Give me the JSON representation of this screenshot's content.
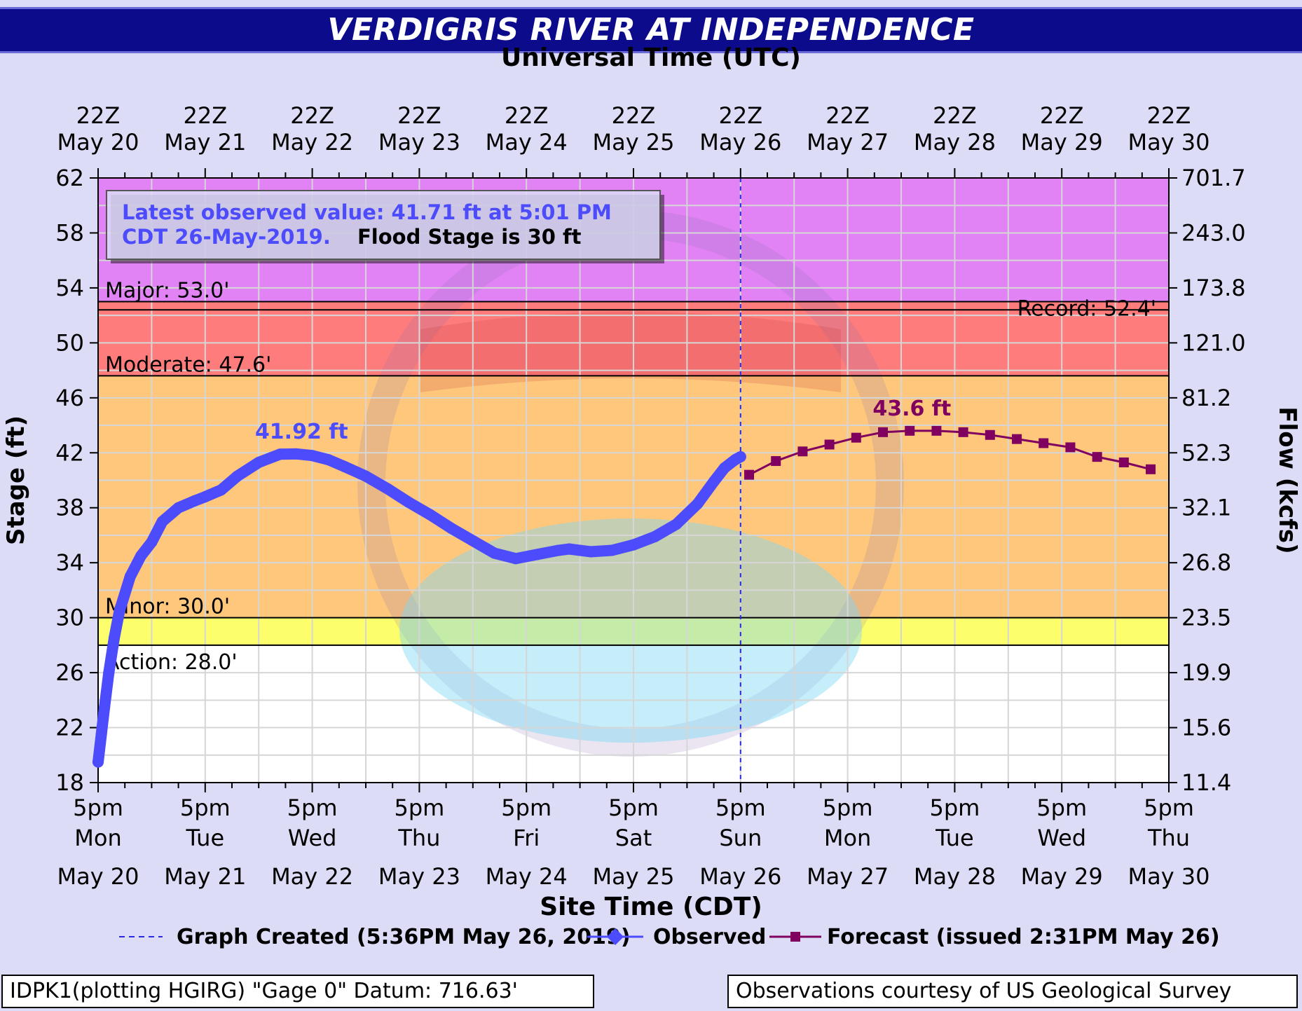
{
  "chart_data": {
    "type": "line",
    "title": "VERDIGRIS RIVER AT INDEPENDENCE",
    "top_axis_label": "Universal Time (UTC)",
    "bottom_axis_label": "Site Time (CDT)",
    "ylabel_left": "Stage (ft)",
    "ylabel_right": "Flow (kcfs)",
    "ylim": [
      18,
      62
    ],
    "xlim_days": [
      0,
      10
    ],
    "y_ticks": [
      18,
      22,
      26,
      30,
      34,
      38,
      42,
      46,
      50,
      54,
      58,
      62
    ],
    "flow_ticks": [
      "11.4",
      "15.6",
      "19.9",
      "23.5",
      "26.8",
      "32.1",
      "52.3",
      "81.2",
      "121.0",
      "173.8",
      "243.0",
      "701.7"
    ],
    "top_ticks": [
      {
        "line1": "22Z",
        "line2": "May 20"
      },
      {
        "line1": "22Z",
        "line2": "May 21"
      },
      {
        "line1": "22Z",
        "line2": "May 22"
      },
      {
        "line1": "22Z",
        "line2": "May 23"
      },
      {
        "line1": "22Z",
        "line2": "May 24"
      },
      {
        "line1": "22Z",
        "line2": "May 25"
      },
      {
        "line1": "22Z",
        "line2": "May 26"
      },
      {
        "line1": "22Z",
        "line2": "May 27"
      },
      {
        "line1": "22Z",
        "line2": "May 28"
      },
      {
        "line1": "22Z",
        "line2": "May 29"
      },
      {
        "line1": "22Z",
        "line2": "May 30"
      }
    ],
    "bottom_ticks": [
      {
        "time": "5pm",
        "day": "Mon",
        "date": "May 20"
      },
      {
        "time": "5pm",
        "day": "Tue",
        "date": "May 21"
      },
      {
        "time": "5pm",
        "day": "Wed",
        "date": "May 22"
      },
      {
        "time": "5pm",
        "day": "Thu",
        "date": "May 23"
      },
      {
        "time": "5pm",
        "day": "Fri",
        "date": "May 24"
      },
      {
        "time": "5pm",
        "day": "Sat",
        "date": "May 25"
      },
      {
        "time": "5pm",
        "day": "Sun",
        "date": "May 26"
      },
      {
        "time": "5pm",
        "day": "Mon",
        "date": "May 27"
      },
      {
        "time": "5pm",
        "day": "Tue",
        "date": "May 28"
      },
      {
        "time": "5pm",
        "day": "Wed",
        "date": "May 29"
      },
      {
        "time": "5pm",
        "day": "Thu",
        "date": "May 30"
      }
    ],
    "flood_categories": [
      {
        "name": "Major",
        "label": "Major: 53.0'",
        "stage": 53.0,
        "color": "#e183f5"
      },
      {
        "name": "Moderate",
        "label": "Moderate: 47.6'",
        "stage": 47.6,
        "color": "#fe7c7c"
      },
      {
        "name": "Minor",
        "label": "Minor: 30.0'",
        "stage": 30.0,
        "color": "#fec77c"
      },
      {
        "name": "Action",
        "label": "Action: 28.0'",
        "stage": 28.0,
        "color": "#fdfe6b"
      }
    ],
    "record": {
      "label": "Record: 52.4'",
      "stage": 52.4
    },
    "below_action_color": "#ffffff",
    "graph_created_day": 6.0,
    "observed": {
      "name": "Observed",
      "color": "#4c4cfc",
      "x": [
        0,
        0.03,
        0.06,
        0.1,
        0.15,
        0.2,
        0.3,
        0.4,
        0.5,
        0.6,
        0.75,
        0.9,
        1.0,
        1.15,
        1.3,
        1.5,
        1.7,
        1.85,
        2.0,
        2.15,
        2.3,
        2.5,
        2.7,
        2.9,
        3.1,
        3.3,
        3.5,
        3.7,
        3.9,
        4.1,
        4.3,
        4.4,
        4.5,
        4.6,
        4.8,
        5.0,
        5.2,
        5.4,
        5.6,
        5.75,
        5.85,
        5.95,
        6.0
      ],
      "y": [
        19.5,
        21.5,
        23.5,
        26.0,
        28.5,
        30.5,
        33.0,
        34.5,
        35.5,
        37.0,
        38.0,
        38.5,
        38.8,
        39.3,
        40.3,
        41.3,
        41.9,
        41.92,
        41.8,
        41.5,
        41.0,
        40.3,
        39.4,
        38.4,
        37.5,
        36.5,
        35.6,
        34.7,
        34.3,
        34.6,
        34.9,
        35.0,
        34.9,
        34.8,
        34.9,
        35.3,
        35.9,
        36.8,
        38.3,
        39.9,
        40.9,
        41.5,
        41.71
      ]
    },
    "forecast": {
      "name": "Forecast",
      "color": "#800060",
      "x": [
        6.08,
        6.33,
        6.58,
        6.83,
        7.08,
        7.33,
        7.58,
        7.83,
        8.08,
        8.33,
        8.58,
        8.83,
        9.08,
        9.33,
        9.58,
        9.83
      ],
      "y": [
        40.4,
        41.4,
        42.1,
        42.6,
        43.1,
        43.5,
        43.6,
        43.6,
        43.5,
        43.3,
        43.0,
        42.7,
        42.4,
        41.7,
        41.3,
        40.8
      ]
    },
    "annotations": [
      {
        "text": "41.92 ft",
        "x": 1.9,
        "y": 41.92,
        "color": "#4c4cfc"
      },
      {
        "text": "43.6 ft",
        "x": 7.6,
        "y": 43.6,
        "color": "#800060"
      }
    ],
    "info_box": {
      "latest": "Latest observed value: 41.71 ft at 5:01 PM",
      "latest_line2": "CDT 26-May-2019.",
      "flood_stage": "Flood Stage is 30 ft"
    },
    "legend": {
      "graph_created": "Graph Created (5:36PM May 26, 2019)",
      "observed": "Observed",
      "forecast": "Forecast (issued 2:31PM May 26)"
    }
  },
  "footer": {
    "datum": "IDPK1(plotting HGIRG) \"Gage 0\" Datum: 716.63'",
    "courtesy": "Observations courtesy of US Geological Survey"
  }
}
